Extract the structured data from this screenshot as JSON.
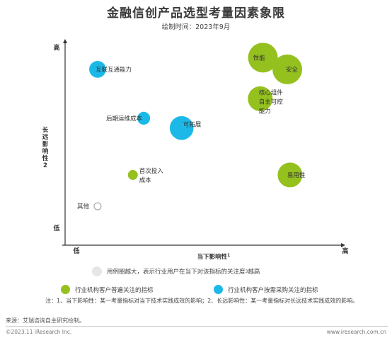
{
  "title": "金融信创产品选型考量因素象限",
  "subtitle": "绘制时间：2023年9月",
  "chart_data": {
    "type": "scatter",
    "xlabel": "当下影响性",
    "xlabel_sup": "1",
    "ylabel": "长远影响性",
    "ylabel_sup": "2",
    "x_low": "低",
    "x_high": "高",
    "y_low": "低",
    "y_high": "高",
    "xlim": [
      0,
      100
    ],
    "ylim": [
      0,
      100
    ],
    "categories": [
      "green",
      "blue",
      "gray"
    ],
    "colors": {
      "green": "#95c11f",
      "blue": "#1cb9e8",
      "gray": "#ffffff"
    },
    "points": [
      {
        "label": "性能",
        "x": 73,
        "y": 93,
        "size": 3,
        "category": "green",
        "label_lines": [
          "性能"
        ]
      },
      {
        "label": "安全",
        "x": 82,
        "y": 87,
        "size": 3,
        "category": "green",
        "label_lines": [
          "安全"
        ]
      },
      {
        "label": "核心组件自主可控能力",
        "x": 72,
        "y": 72,
        "size": 2.5,
        "category": "green",
        "label_lines": [
          "核心组件",
          "自主可控",
          "能力"
        ]
      },
      {
        "label": "易用性",
        "x": 83,
        "y": 33,
        "size": 2.5,
        "category": "green",
        "label_lines": [
          "易用性"
        ]
      },
      {
        "label": "首次投入成本",
        "x": 25,
        "y": 33,
        "size": 1.0,
        "category": "green",
        "label_lines": [
          "首次投入",
          "成本"
        ]
      },
      {
        "label": "其他",
        "x": 12,
        "y": 17,
        "size": 1.0,
        "category": "gray",
        "label_lines": [
          "其他"
        ]
      },
      {
        "label": "互联互通能力",
        "x": 12,
        "y": 87,
        "size": 1.7,
        "category": "blue",
        "label_lines": [
          "互联互通能力"
        ]
      },
      {
        "label": "后期运维成本",
        "x": 29,
        "y": 62,
        "size": 1.3,
        "category": "blue",
        "label_lines": [
          "后期运维成本"
        ]
      },
      {
        "label": "可拓展",
        "x": 43,
        "y": 57,
        "size": 2.4,
        "category": "blue",
        "label_lines": [
          "可拓展"
        ]
      }
    ]
  },
  "legend": {
    "size_note": "用例圈越大，表示行业用户在当下对该指标的关注度",
    "size_note_sup": "3",
    "size_note_end": "越高",
    "green_label": "行业机构客户普遍关注的指标",
    "blue_label": "行业机构客户按需采购关注的指标"
  },
  "note": "注：1、当下影响性：某一考量指标对当下技术实践成效的影响；2、长远影响性：某一考量指标对长远技术实践成效的影响。",
  "source": "来源：艾瑞咨询自主研究绘制。",
  "copyright": "©2023.11 iResearch Inc.",
  "website": "www.iresearch.com.cn"
}
